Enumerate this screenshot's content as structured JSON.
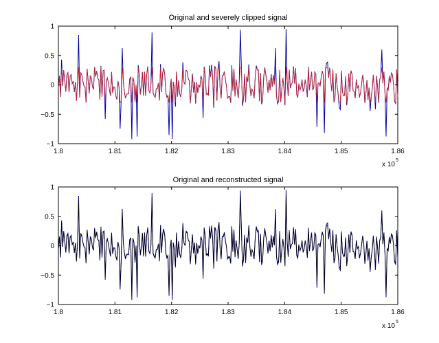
{
  "chart_data": [
    {
      "type": "line",
      "title": "Original and severely clipped signal",
      "xlabel": "",
      "ylabel": "",
      "xlim": [
        1.8,
        1.86
      ],
      "ylim": [
        -1,
        1
      ],
      "x_scale_label": "x 10",
      "x_scale_exponent": "5",
      "xticks": [
        1.8,
        1.81,
        1.82,
        1.83,
        1.84,
        1.85,
        1.86
      ],
      "xtick_labels": [
        "1.8",
        "1.81",
        "1.82",
        "1.83",
        "1.84",
        "1.85",
        "1.86"
      ],
      "yticks": [
        -1,
        -0.5,
        0,
        0.5,
        1
      ],
      "ytick_labels": [
        "−1",
        "−0.5",
        "0",
        "0.5",
        "1"
      ],
      "grid": false,
      "series": [
        {
          "name": "original",
          "color": "#0000aa",
          "kind": "noise",
          "seed": 7,
          "amplitude": 0.32,
          "peak_probability": 0.06,
          "peak_amplitude": 0.95,
          "points": 320
        },
        {
          "name": "clipped",
          "color": "#cc2222",
          "kind": "clipped",
          "clip_level": 0.3,
          "ref_series": 0
        }
      ]
    },
    {
      "type": "line",
      "title": "Original and reconstructed signal",
      "xlabel": "",
      "ylabel": "",
      "xlim": [
        1.8,
        1.86
      ],
      "ylim": [
        -1,
        1
      ],
      "x_scale_label": "x 10",
      "x_scale_exponent": "5",
      "xticks": [
        1.8,
        1.81,
        1.82,
        1.83,
        1.84,
        1.85,
        1.86
      ],
      "xtick_labels": [
        "1.8",
        "1.81",
        "1.82",
        "1.83",
        "1.84",
        "1.85",
        "1.86"
      ],
      "yticks": [
        -1,
        -0.5,
        0,
        0.5,
        1
      ],
      "ytick_labels": [
        "−1",
        "−0.5",
        "0",
        "0.5",
        "1"
      ],
      "grid": false,
      "series": [
        {
          "name": "original",
          "color": "#0000aa",
          "kind": "noise",
          "seed": 7,
          "amplitude": 0.32,
          "peak_probability": 0.06,
          "peak_amplitude": 0.95,
          "points": 320
        },
        {
          "name": "reconstructed",
          "color": "#000000",
          "kind": "reconstructed",
          "ref_series": 0,
          "scale": 0.92
        }
      ]
    }
  ]
}
